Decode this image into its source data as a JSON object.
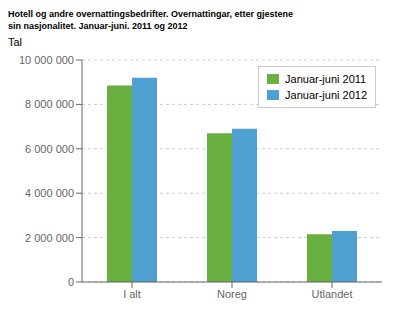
{
  "chart_data": {
    "type": "bar",
    "title": "Hotell og andre overnattingsbedrifter. Overnattingar, etter gjestene\nsin nasjonalitet. Januar-juni. 2011 og 2012",
    "y_label": "Tal",
    "categories": [
      "I alt",
      "Noreg",
      "Utlandet"
    ],
    "series": [
      {
        "name": "Januar-juni 2011",
        "color": "#6ab040",
        "values": [
          8850000,
          6700000,
          2150000
        ]
      },
      {
        "name": "Januar-juni 2012",
        "color": "#4da0d0",
        "values": [
          9200000,
          6900000,
          2300000
        ]
      }
    ],
    "ylim": [
      0,
      10000000
    ],
    "yticks": [
      0,
      {
        "value": 2000000,
        "label": "2 000 000"
      },
      {
        "value": 4000000,
        "label": "4 000 000"
      },
      {
        "value": 6000000,
        "label": "6 000 000"
      },
      {
        "value": 8000000,
        "label": "8 000 000"
      },
      {
        "value": 10000000,
        "label": "10 000 000"
      }
    ],
    "grid": true,
    "legend": "upper right"
  }
}
